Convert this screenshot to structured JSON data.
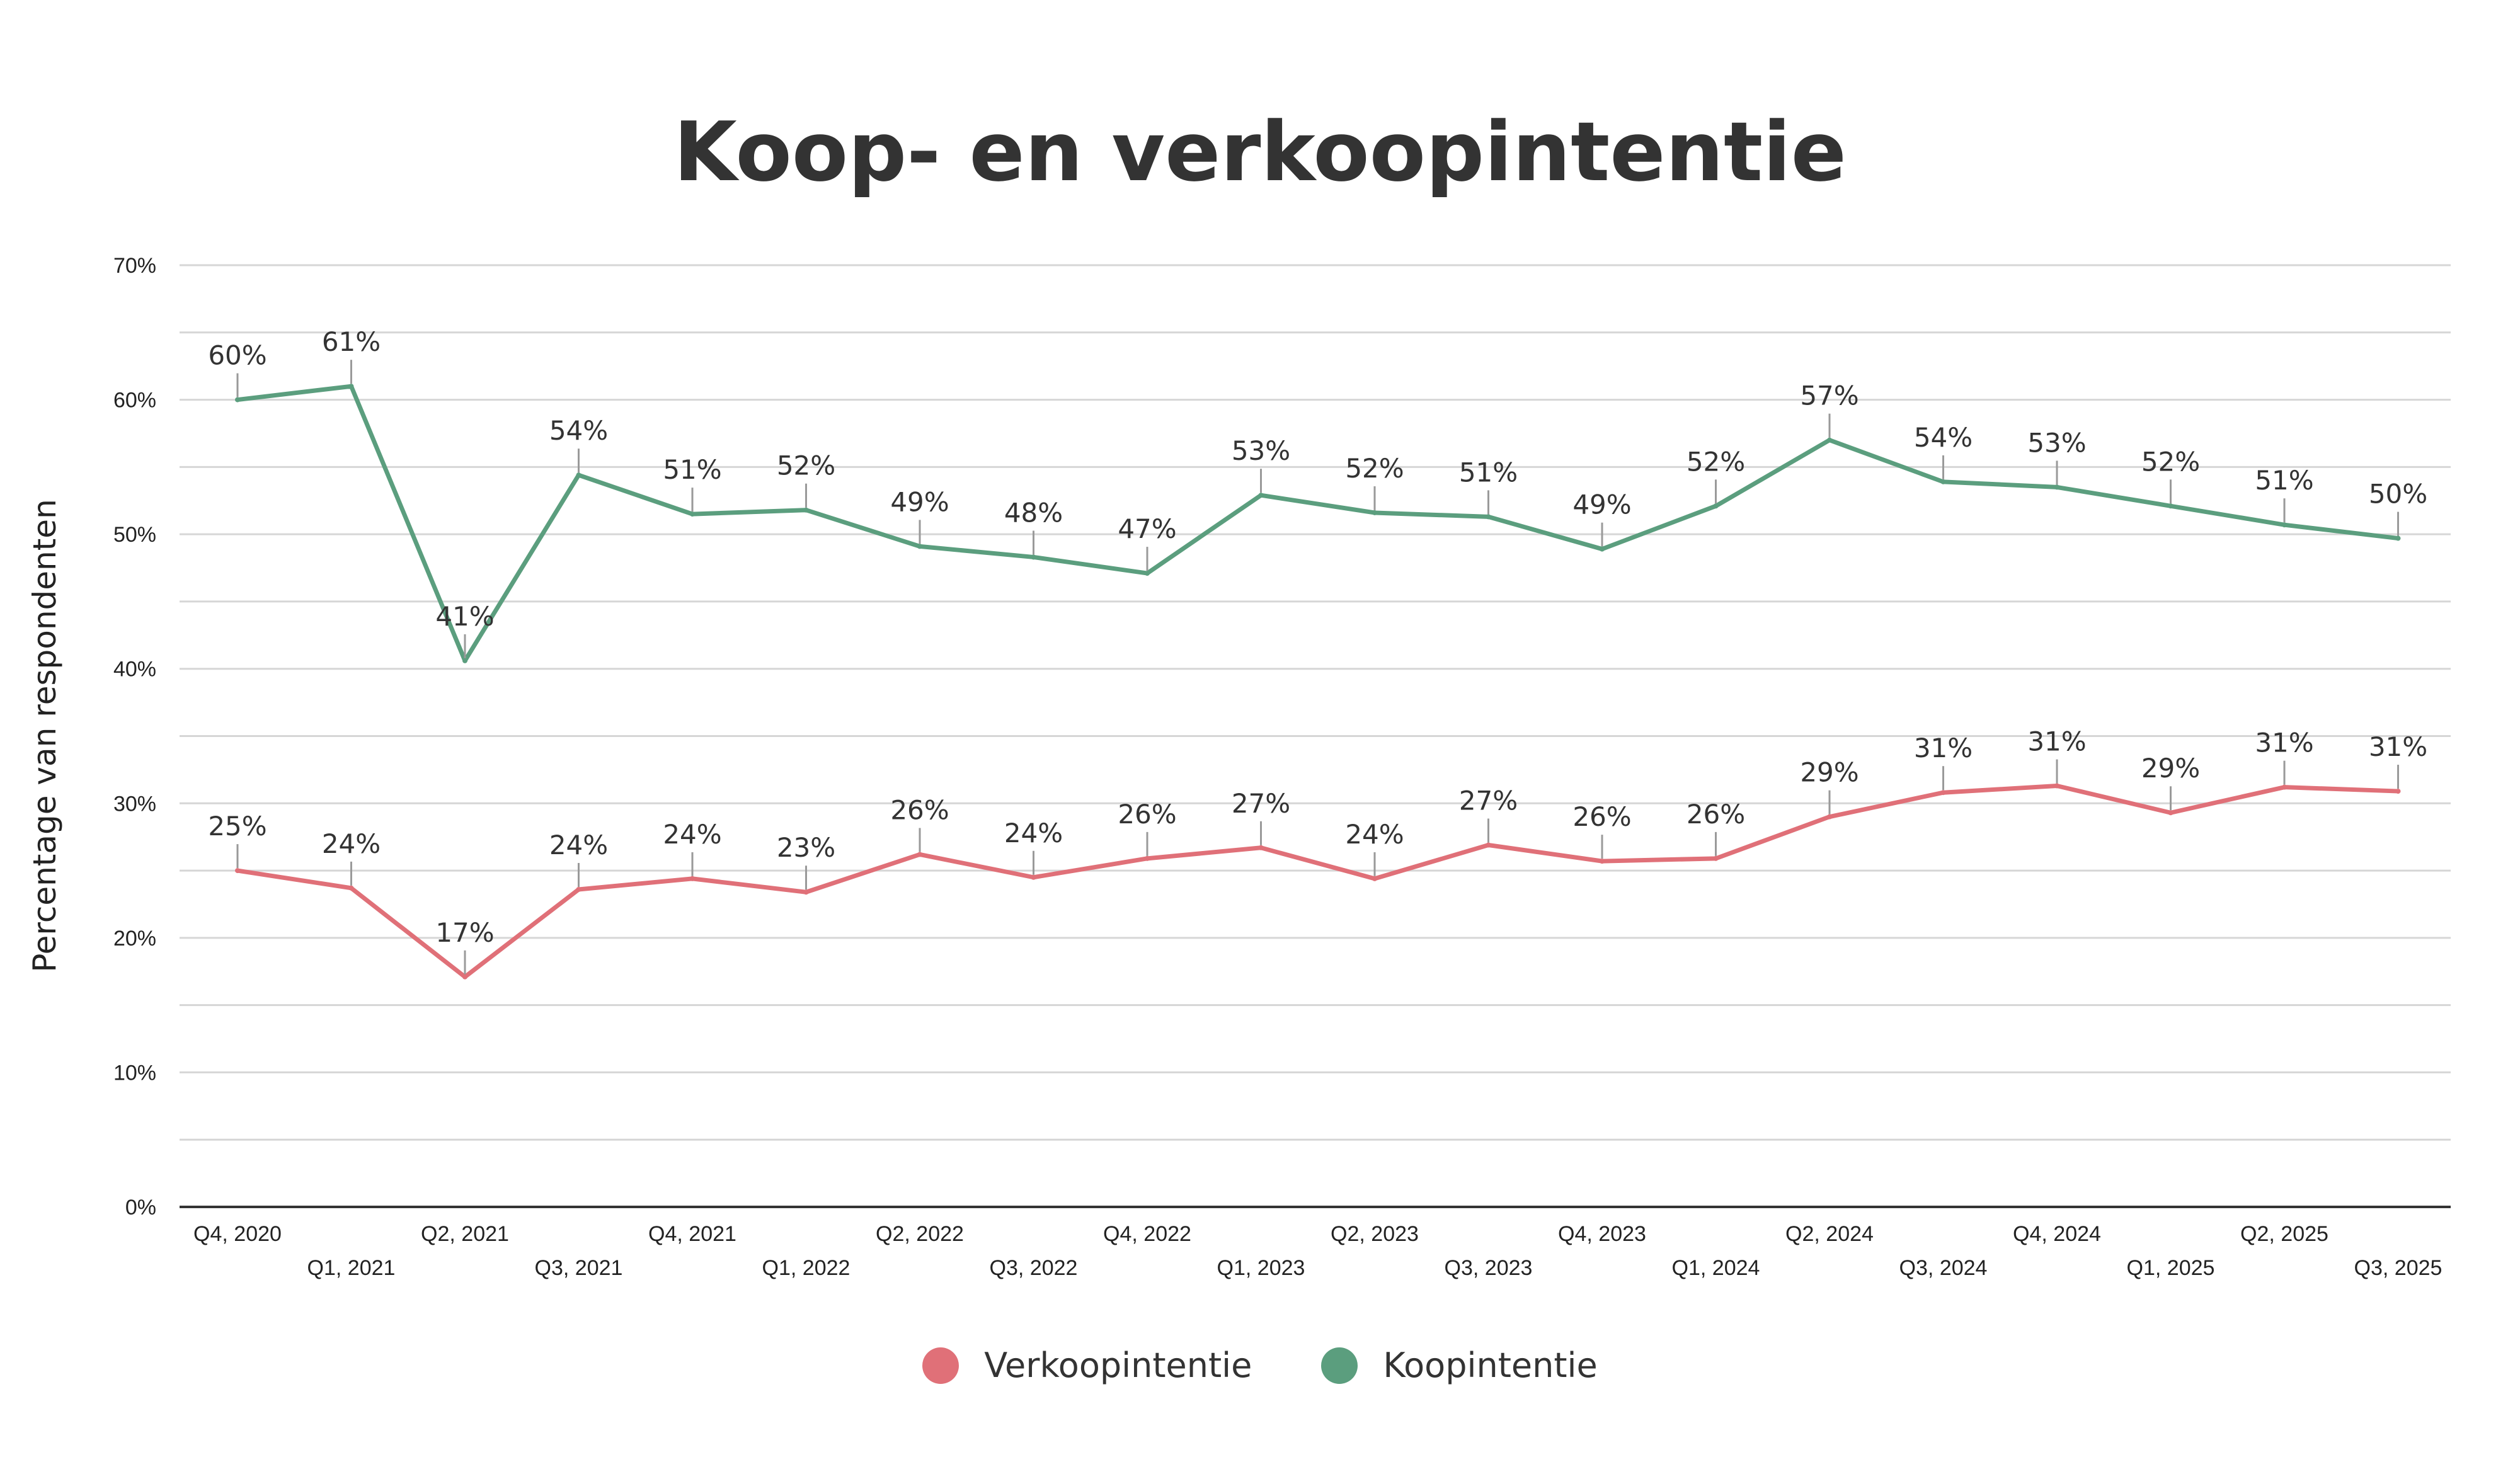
{
  "chart_data": {
    "type": "line",
    "title": "Koop- en verkoopintentie",
    "xlabel": "",
    "ylabel": "Percentage van respondenten",
    "ylim": [
      0,
      70
    ],
    "yticks": [
      "0%",
      "10%",
      "20%",
      "30%",
      "40%",
      "50%",
      "60%",
      "70%"
    ],
    "grid": true,
    "legend_position": "bottom",
    "categories": [
      "Q4, 2020",
      "Q1, 2021",
      "Q2, 2021",
      "Q3, 2021",
      "Q4, 2021",
      "Q1, 2022",
      "Q2, 2022",
      "Q3, 2022",
      "Q4, 2022",
      "Q1, 2023",
      "Q2, 2023",
      "Q3, 2023",
      "Q4, 2023",
      "Q1, 2024",
      "Q2, 2024",
      "Q3, 2024",
      "Q4, 2024",
      "Q1, 2025",
      "Q2, 2025",
      "Q3, 2025"
    ],
    "series": [
      {
        "name": "Verkoopintentie",
        "color": "#E07078",
        "values": [
          25.0,
          23.7,
          17.1,
          23.6,
          24.4,
          23.4,
          26.2,
          24.5,
          25.9,
          26.7,
          24.4,
          26.9,
          25.7,
          25.9,
          29.0,
          30.8,
          31.3,
          29.3,
          31.2,
          30.9
        ],
        "labels": [
          "25%",
          "24%",
          "17%",
          "24%",
          "24%",
          "23%",
          "26%",
          "24%",
          "26%",
          "27%",
          "24%",
          "27%",
          "26%",
          "26%",
          "29%",
          "31%",
          "31%",
          "29%",
          "31%",
          "31%"
        ]
      },
      {
        "name": "Koopintentie",
        "color": "#5B9E7E",
        "values": [
          60.0,
          61.0,
          40.6,
          54.4,
          51.5,
          51.8,
          49.1,
          48.3,
          47.1,
          52.9,
          51.6,
          51.3,
          48.9,
          52.1,
          57.0,
          53.9,
          53.5,
          52.1,
          50.7,
          49.7
        ],
        "labels": [
          "60%",
          "61%",
          "41%",
          "54%",
          "51%",
          "52%",
          "49%",
          "48%",
          "47%",
          "53%",
          "52%",
          "51%",
          "49%",
          "52%",
          "57%",
          "54%",
          "53%",
          "52%",
          "51%",
          "50%"
        ]
      }
    ]
  }
}
